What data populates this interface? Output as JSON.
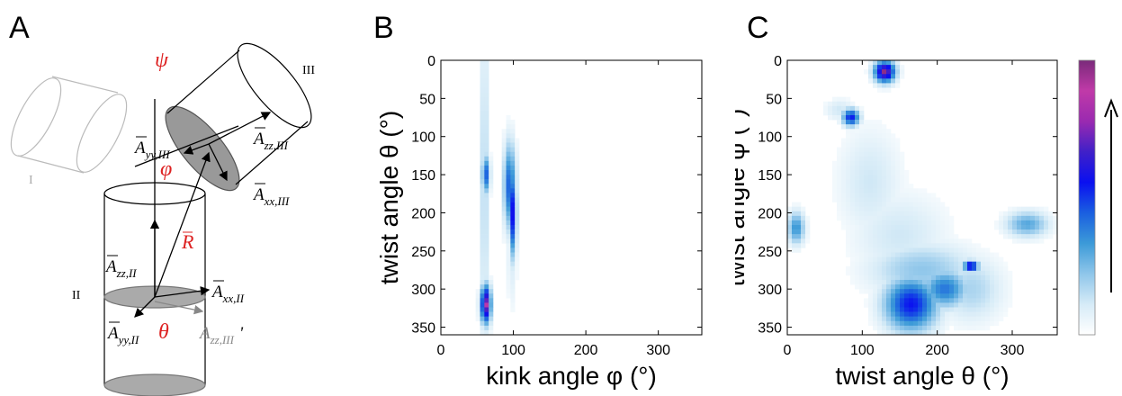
{
  "panels": {
    "a": "A",
    "b": "B",
    "c": "C"
  },
  "schematic": {
    "roman_I": "I",
    "roman_II": "II",
    "roman_III": "III",
    "psi": "ψ",
    "phi": "φ",
    "theta": "θ",
    "R": "R",
    "A_yy_III": "A",
    "A_yy_III_sub": "yy,III",
    "A_zz_III": "A",
    "A_zz_III_sub": "zz,III",
    "A_xx_III": "A",
    "A_xx_III_sub": "xx,III",
    "A_zz_II": "A",
    "A_zz_II_sub": "zz,II",
    "A_xx_II": "A",
    "A_xx_II_sub": "xx,II",
    "A_yy_II": "A",
    "A_yy_II_sub": "yy,II",
    "A_zz_III_proj": "A",
    "A_zz_III_proj_sub": "zz,III",
    "prime": "'"
  },
  "chart_data": [
    {
      "type": "heatmap",
      "panel": "B",
      "xlabel": "kink angle φ (°)",
      "ylabel": "twist angle θ (°)",
      "xlim": [
        0,
        360
      ],
      "ylim": [
        360,
        0
      ],
      "xticks": [
        0,
        100,
        200,
        300
      ],
      "yticks": [
        0,
        50,
        100,
        150,
        200,
        250,
        300,
        350
      ],
      "blobs": [
        {
          "x": 60,
          "y": 160,
          "sx": 3,
          "sy": 170,
          "v": 0.22
        },
        {
          "x": 62,
          "y": 150,
          "sx": 4,
          "sy": 18,
          "v": 0.45
        },
        {
          "x": 62,
          "y": 320,
          "sx": 5,
          "sy": 18,
          "v": 0.75
        },
        {
          "x": 62,
          "y": 322,
          "sx": 2,
          "sy": 6,
          "v": 1.0
        },
        {
          "x": 95,
          "y": 165,
          "sx": 6,
          "sy": 40,
          "v": 0.45
        },
        {
          "x": 100,
          "y": 200,
          "sx": 3,
          "sy": 40,
          "v": 0.6
        },
        {
          "x": 98,
          "y": 255,
          "sx": 5,
          "sy": 50,
          "v": 0.1
        }
      ]
    },
    {
      "type": "heatmap",
      "panel": "C",
      "xlabel": "twist angle θ (°)",
      "ylabel": "twist angle ψ (°)",
      "xlim": [
        0,
        360
      ],
      "ylim": [
        360,
        0
      ],
      "xticks": [
        0,
        100,
        200,
        300
      ],
      "yticks": [
        0,
        50,
        100,
        150,
        200,
        250,
        300,
        350
      ],
      "colorbar": {
        "min_color": "#ffffff",
        "max_color": "#7a2a7a",
        "colors": [
          "#ffffff",
          "#d6ebf7",
          "#8fc6ea",
          "#3c9ad8",
          "#1a5fe0",
          "#0a10f0",
          "#4020c8",
          "#9a2ab0",
          "#c03aa8",
          "#7a2a7a"
        ]
      },
      "blobs": [
        {
          "x": 130,
          "y": 15,
          "sx": 10,
          "sy": 10,
          "v": 0.75
        },
        {
          "x": 130,
          "y": 15,
          "sx": 4,
          "sy": 4,
          "v": 1.0
        },
        {
          "x": 85,
          "y": 75,
          "sx": 8,
          "sy": 8,
          "v": 0.55
        },
        {
          "x": 110,
          "y": 160,
          "sx": 30,
          "sy": 50,
          "v": 0.12
        },
        {
          "x": 150,
          "y": 230,
          "sx": 45,
          "sy": 40,
          "v": 0.12
        },
        {
          "x": 180,
          "y": 275,
          "sx": 50,
          "sy": 25,
          "v": 0.22
        },
        {
          "x": 165,
          "y": 320,
          "sx": 25,
          "sy": 25,
          "v": 0.55
        },
        {
          "x": 210,
          "y": 300,
          "sx": 22,
          "sy": 18,
          "v": 0.4
        },
        {
          "x": 245,
          "y": 300,
          "sx": 30,
          "sy": 30,
          "v": 0.18
        },
        {
          "x": 245,
          "y": 270,
          "sx": 7,
          "sy": 5,
          "v": 0.65
        },
        {
          "x": 320,
          "y": 215,
          "sx": 20,
          "sy": 12,
          "v": 0.3
        },
        {
          "x": 12,
          "y": 220,
          "sx": 8,
          "sy": 15,
          "v": 0.35
        },
        {
          "x": 70,
          "y": 65,
          "sx": 14,
          "sy": 10,
          "v": 0.12
        }
      ]
    }
  ]
}
